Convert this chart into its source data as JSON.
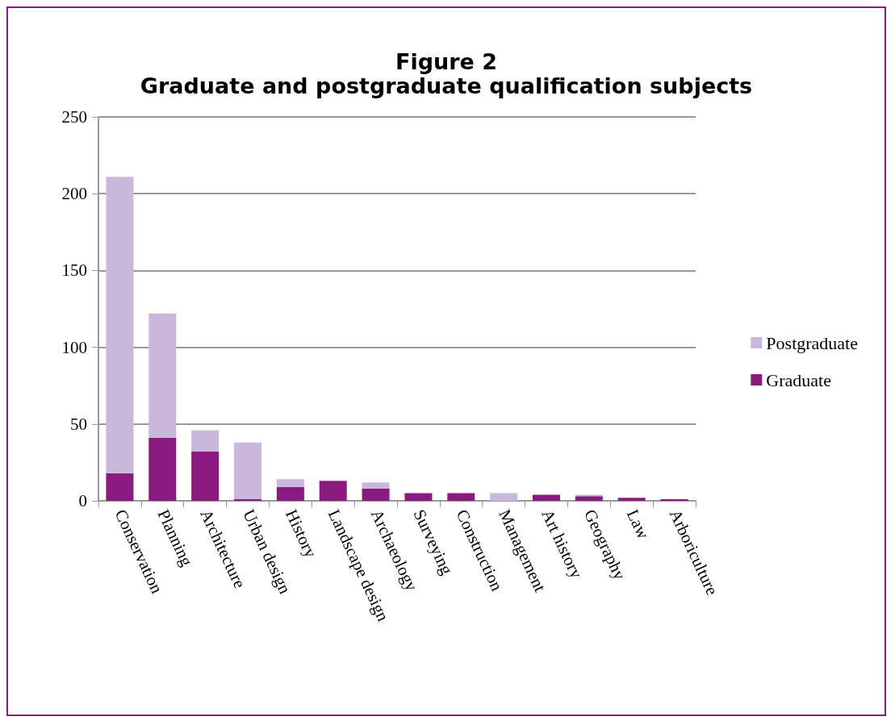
{
  "chart_data": {
    "type": "bar",
    "title": "Figure 2",
    "subtitle": "Graduate and postgraduate qualification subjects",
    "categories": [
      "Conservation",
      "Planning",
      "Architecture",
      "Urban design",
      "History",
      "Landscape design",
      "Archaeology",
      "Surveying",
      "Construction",
      "Management",
      "Art history",
      "Geography",
      "Law",
      "Arboriculture"
    ],
    "series": [
      {
        "name": "Graduate",
        "color": "#8b1a7f",
        "values": [
          18,
          41,
          32,
          1,
          9,
          13,
          8,
          5,
          5,
          0,
          4,
          3,
          2,
          1
        ]
      },
      {
        "name": "Postgraduate",
        "color": "#c9b8dc",
        "values": [
          193,
          81,
          14,
          37,
          5,
          0,
          4,
          0,
          0,
          5,
          0,
          1,
          0,
          0
        ]
      }
    ],
    "stacked": true,
    "ylim": [
      0,
      250
    ],
    "yticks": [
      0,
      50,
      100,
      150,
      200,
      250
    ],
    "grid": "y",
    "legend": "right"
  }
}
